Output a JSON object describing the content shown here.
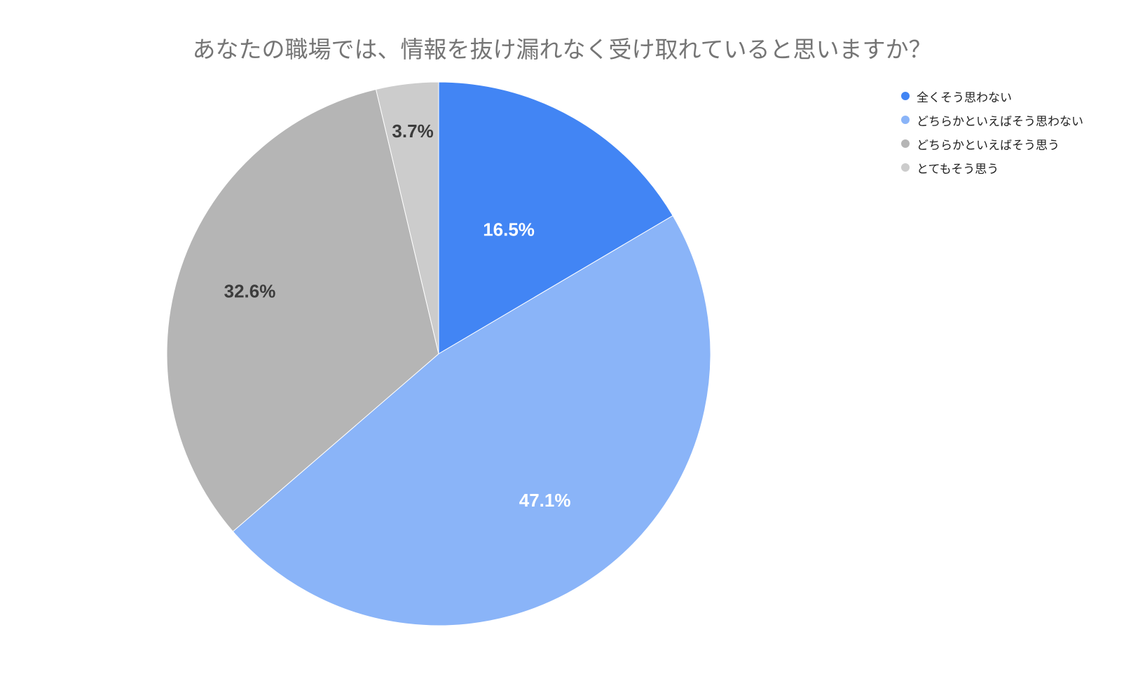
{
  "chart_data": {
    "type": "pie",
    "title": "あなたの職場では、情報を抜け漏れなく受け取れていると思いますか？",
    "legend_position": "top-right",
    "slices": [
      {
        "label": "全くそう思わない",
        "value": 16.5,
        "display": "16.5%",
        "color": "#4285F4",
        "label_color": "#ffffff"
      },
      {
        "label": "どちらかといえばそう思わない",
        "value": 47.1,
        "display": "47.1%",
        "color": "#8AB4F8",
        "label_color": "#ffffff"
      },
      {
        "label": "どちらかといえばそう思う",
        "value": 32.6,
        "display": "32.6%",
        "color": "#B5B5B5",
        "label_color": "#3c3c3c"
      },
      {
        "label": "とてもそう思う",
        "value": 3.7,
        "display": "3.7%",
        "color": "#CCCCCC",
        "label_color": "#3c3c3c"
      }
    ]
  }
}
